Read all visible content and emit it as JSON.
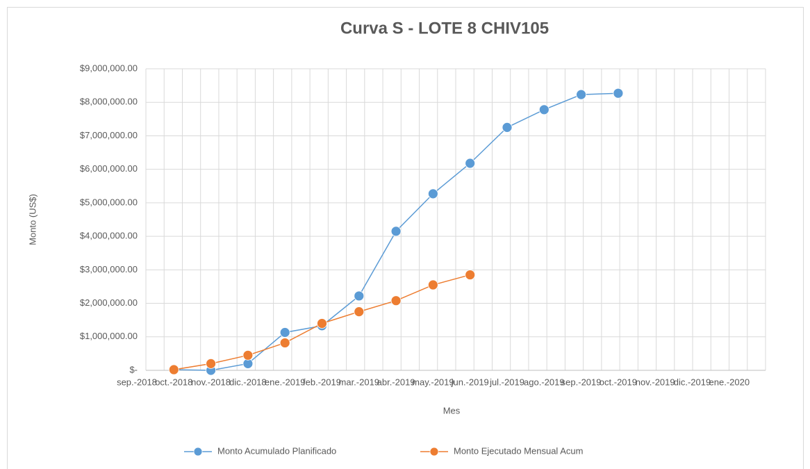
{
  "chart_data": {
    "type": "line",
    "title": "Curva S - LOTE 8 CHIV105",
    "x_label": "Mes",
    "y_label": "Monto (US$)",
    "categories": [
      "sep.-2018",
      "oct.-2018",
      "nov.-2018",
      "dic.-2018",
      "ene.-2019",
      "feb.-2019",
      "mar.-2019",
      "abr.-2019",
      "may.-2019",
      "jun.-2019",
      "jul.-2019",
      "ago.-2019",
      "sep.-2019",
      "oct.-2019",
      "nov.-2019",
      "dic.-2019",
      "ene.-2020"
    ],
    "series": [
      {
        "name": "Monto Acumulado Planificado",
        "color": "#5b9bd5",
        "values": [
          null,
          20000,
          0,
          200000,
          1130000,
          1330000,
          2220000,
          4150000,
          5270000,
          6180000,
          7250000,
          7780000,
          8230000,
          8270000,
          null,
          null,
          null
        ]
      },
      {
        "name": "Monto Ejecutado Mensual Acum",
        "color": "#ed7d31",
        "values": [
          null,
          20000,
          200000,
          450000,
          820000,
          1400000,
          1750000,
          2080000,
          2550000,
          2850000,
          null,
          null,
          null,
          null,
          null,
          null,
          null
        ]
      }
    ],
    "ylim": [
      0,
      9000000
    ],
    "yticks": [
      {
        "value": 0,
        "label": "$-"
      },
      {
        "value": 1000000,
        "label": "$1,000,000.00"
      },
      {
        "value": 2000000,
        "label": "$2,000,000.00"
      },
      {
        "value": 3000000,
        "label": "$3,000,000.00"
      },
      {
        "value": 4000000,
        "label": "$4,000,000.00"
      },
      {
        "value": 5000000,
        "label": "$5,000,000.00"
      },
      {
        "value": 6000000,
        "label": "$6,000,000.00"
      },
      {
        "value": 7000000,
        "label": "$7,000,000.00"
      },
      {
        "value": 8000000,
        "label": "$8,000,000.00"
      },
      {
        "value": 9000000,
        "label": "$9,000,000.00"
      }
    ],
    "grid": true,
    "legend": "bottom"
  }
}
